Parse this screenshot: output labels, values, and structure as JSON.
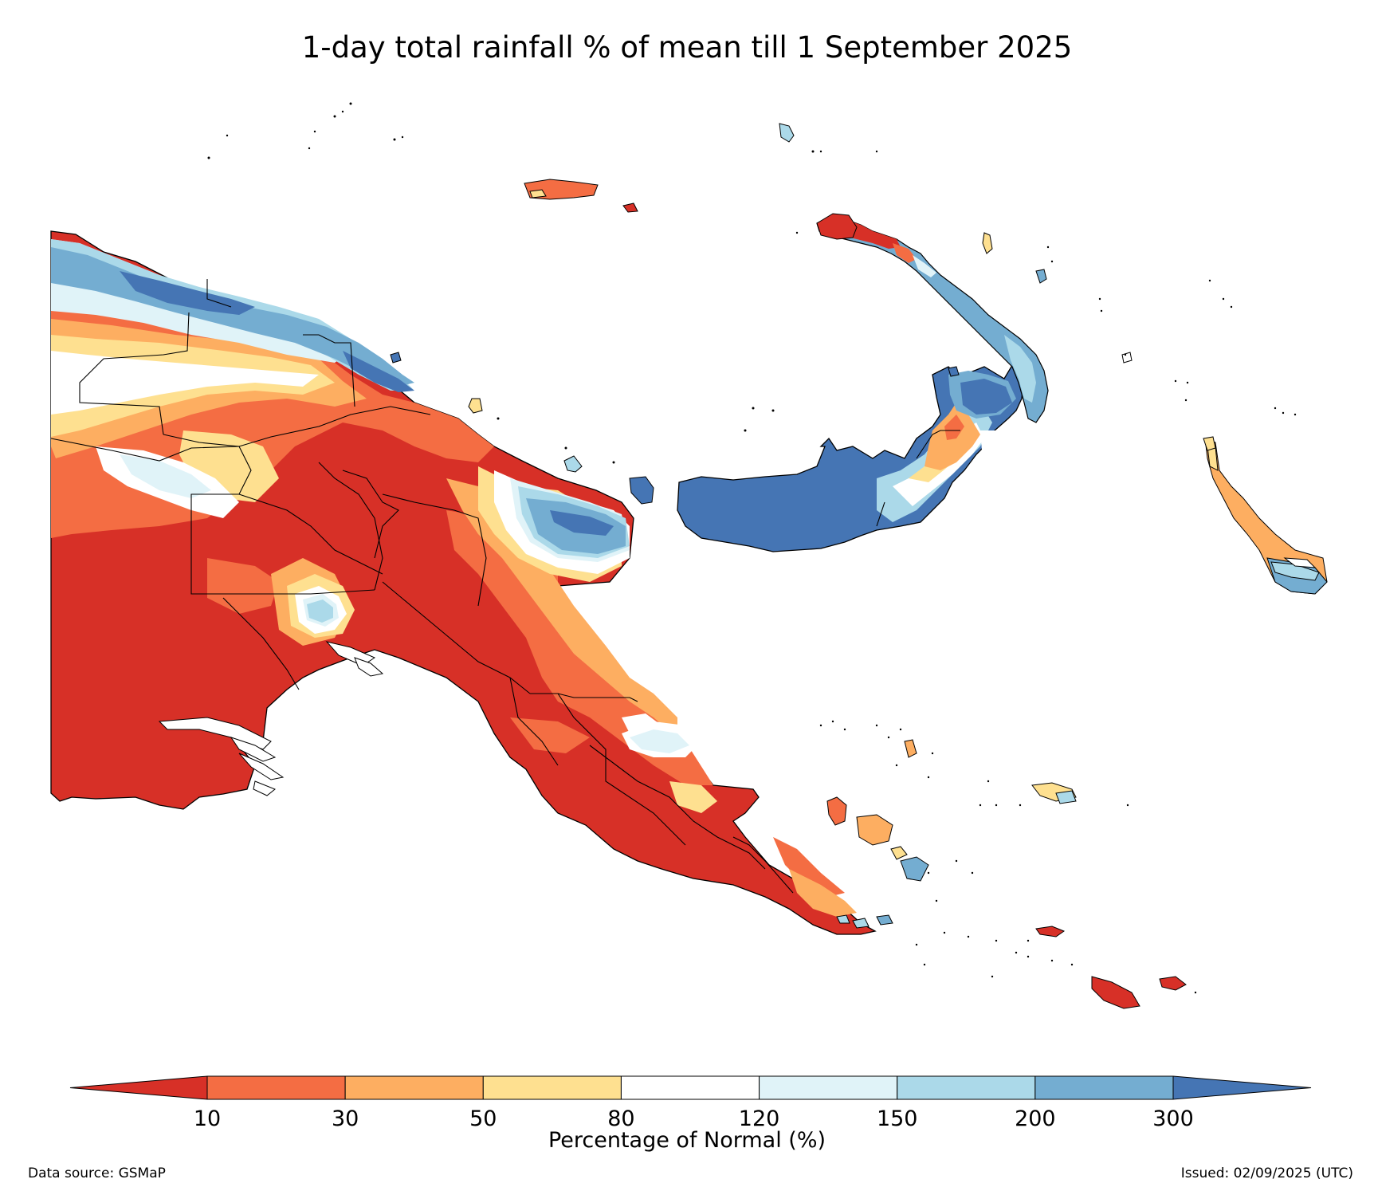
{
  "title": "1-day total rainfall % of mean till 1 September 2025",
  "map": {
    "region": "Papua New Guinea",
    "variable": "1-day total rainfall percentage of normal"
  },
  "colorbar": {
    "title": "Percentage of Normal (%)",
    "ticks": [
      "10",
      "30",
      "50",
      "80",
      "120",
      "150",
      "200",
      "300"
    ],
    "classes": [
      {
        "label": "<10",
        "color": "#d73027"
      },
      {
        "label": "10-30",
        "color": "#f46d43"
      },
      {
        "label": "30-50",
        "color": "#fdae61"
      },
      {
        "label": "50-80",
        "color": "#fee090"
      },
      {
        "label": "80-120",
        "color": "#ffffff"
      },
      {
        "label": "120-150",
        "color": "#e0f3f8"
      },
      {
        "label": "150-200",
        "color": "#abd9e9"
      },
      {
        "label": "200-300",
        "color": "#74add1"
      },
      {
        "label": ">300",
        "color": "#4575b4"
      }
    ]
  },
  "footer": {
    "source": "Data source: GSMaP",
    "issued": "Issued: 02/09/2025 (UTC)"
  }
}
